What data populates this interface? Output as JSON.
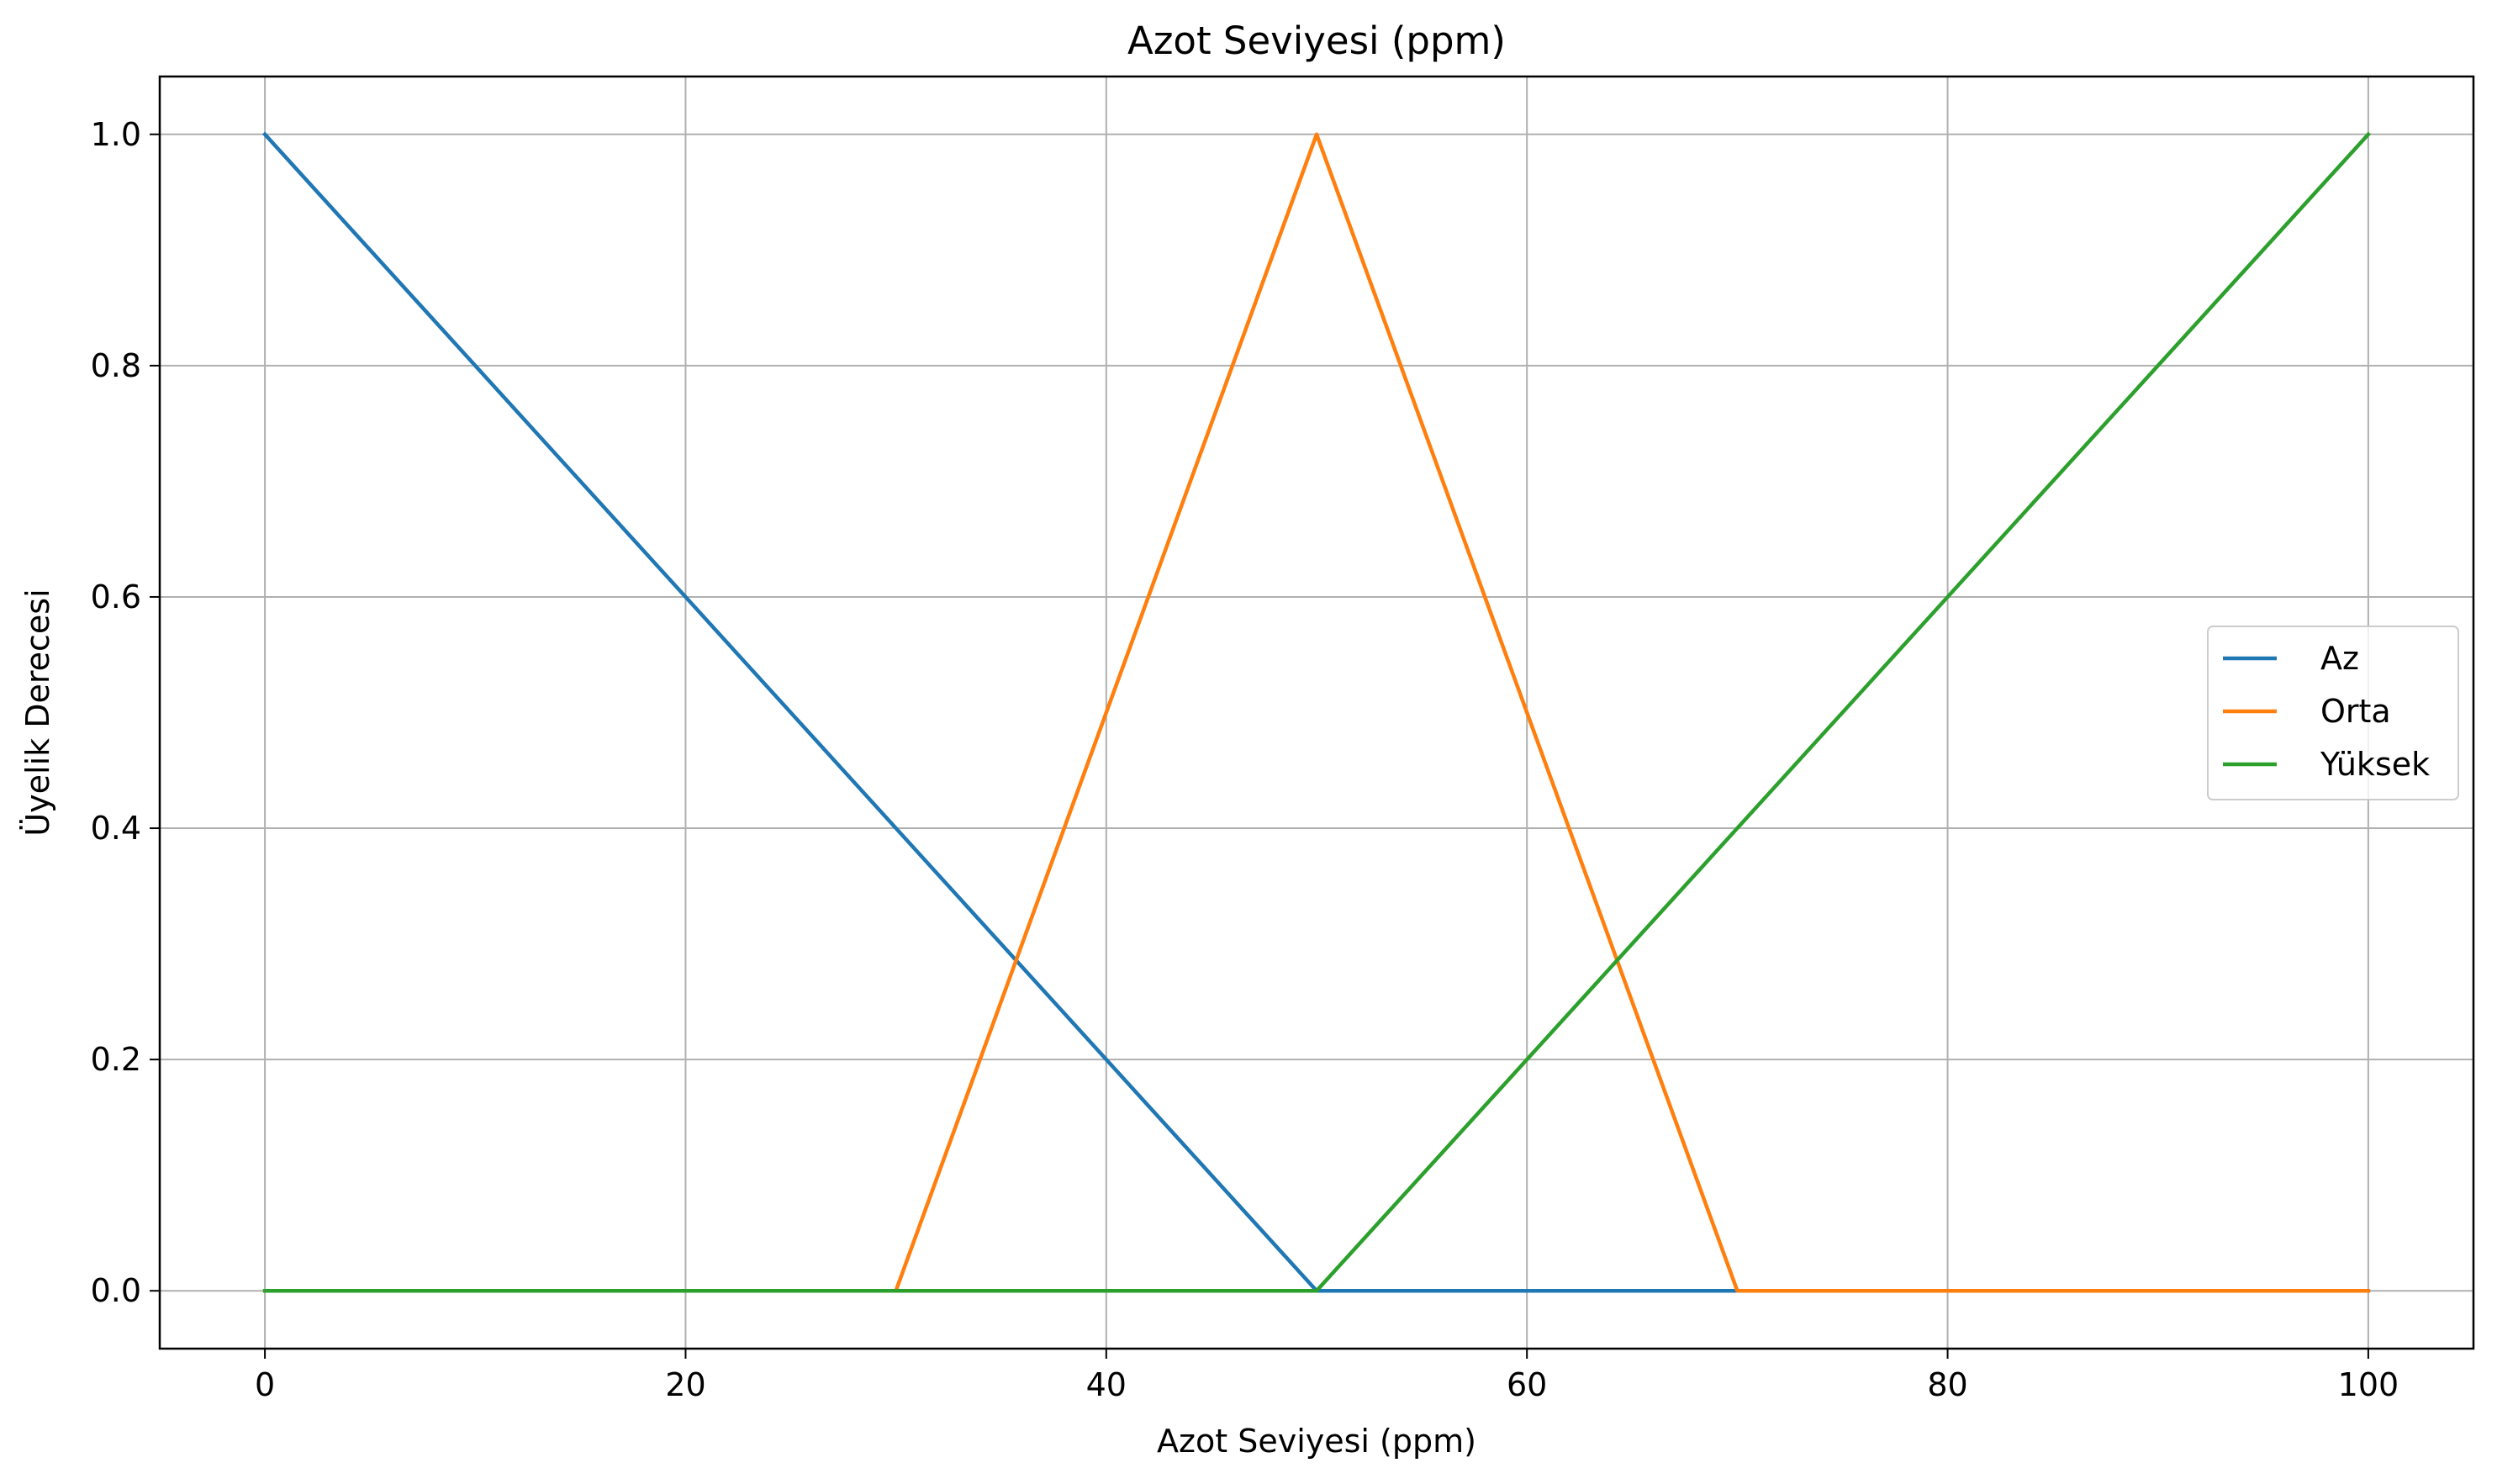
{
  "chart_data": {
    "type": "line",
    "title": "Azot Seviyesi (ppm)",
    "xlabel": "Azot Seviyesi (ppm)",
    "ylabel": "Üyelik Derecesi",
    "xlim": [
      -5,
      105
    ],
    "ylim": [
      -0.05,
      1.05
    ],
    "xticks": [
      0,
      20,
      40,
      60,
      80,
      100
    ],
    "xtick_labels": [
      "0",
      "20",
      "40",
      "60",
      "80",
      "100"
    ],
    "yticks": [
      0.0,
      0.2,
      0.4,
      0.6,
      0.8,
      1.0
    ],
    "ytick_labels": [
      "0.0",
      "0.2",
      "0.4",
      "0.6",
      "0.8",
      "1.0"
    ],
    "grid": true,
    "legend_position": "center-right",
    "series": [
      {
        "name": "Az",
        "color": "#1f77b4",
        "x": [
          0,
          50,
          70,
          100
        ],
        "y": [
          1.0,
          0.0,
          0.0,
          0.0
        ]
      },
      {
        "name": "Orta",
        "color": "#ff7f0e",
        "x": [
          0,
          30,
          50,
          70,
          100
        ],
        "y": [
          0.0,
          0.0,
          1.0,
          0.0,
          0.0
        ]
      },
      {
        "name": "Yüksek",
        "color": "#2ca02c",
        "x": [
          0,
          50,
          100
        ],
        "y": [
          0.0,
          0.0,
          1.0
        ]
      }
    ]
  }
}
